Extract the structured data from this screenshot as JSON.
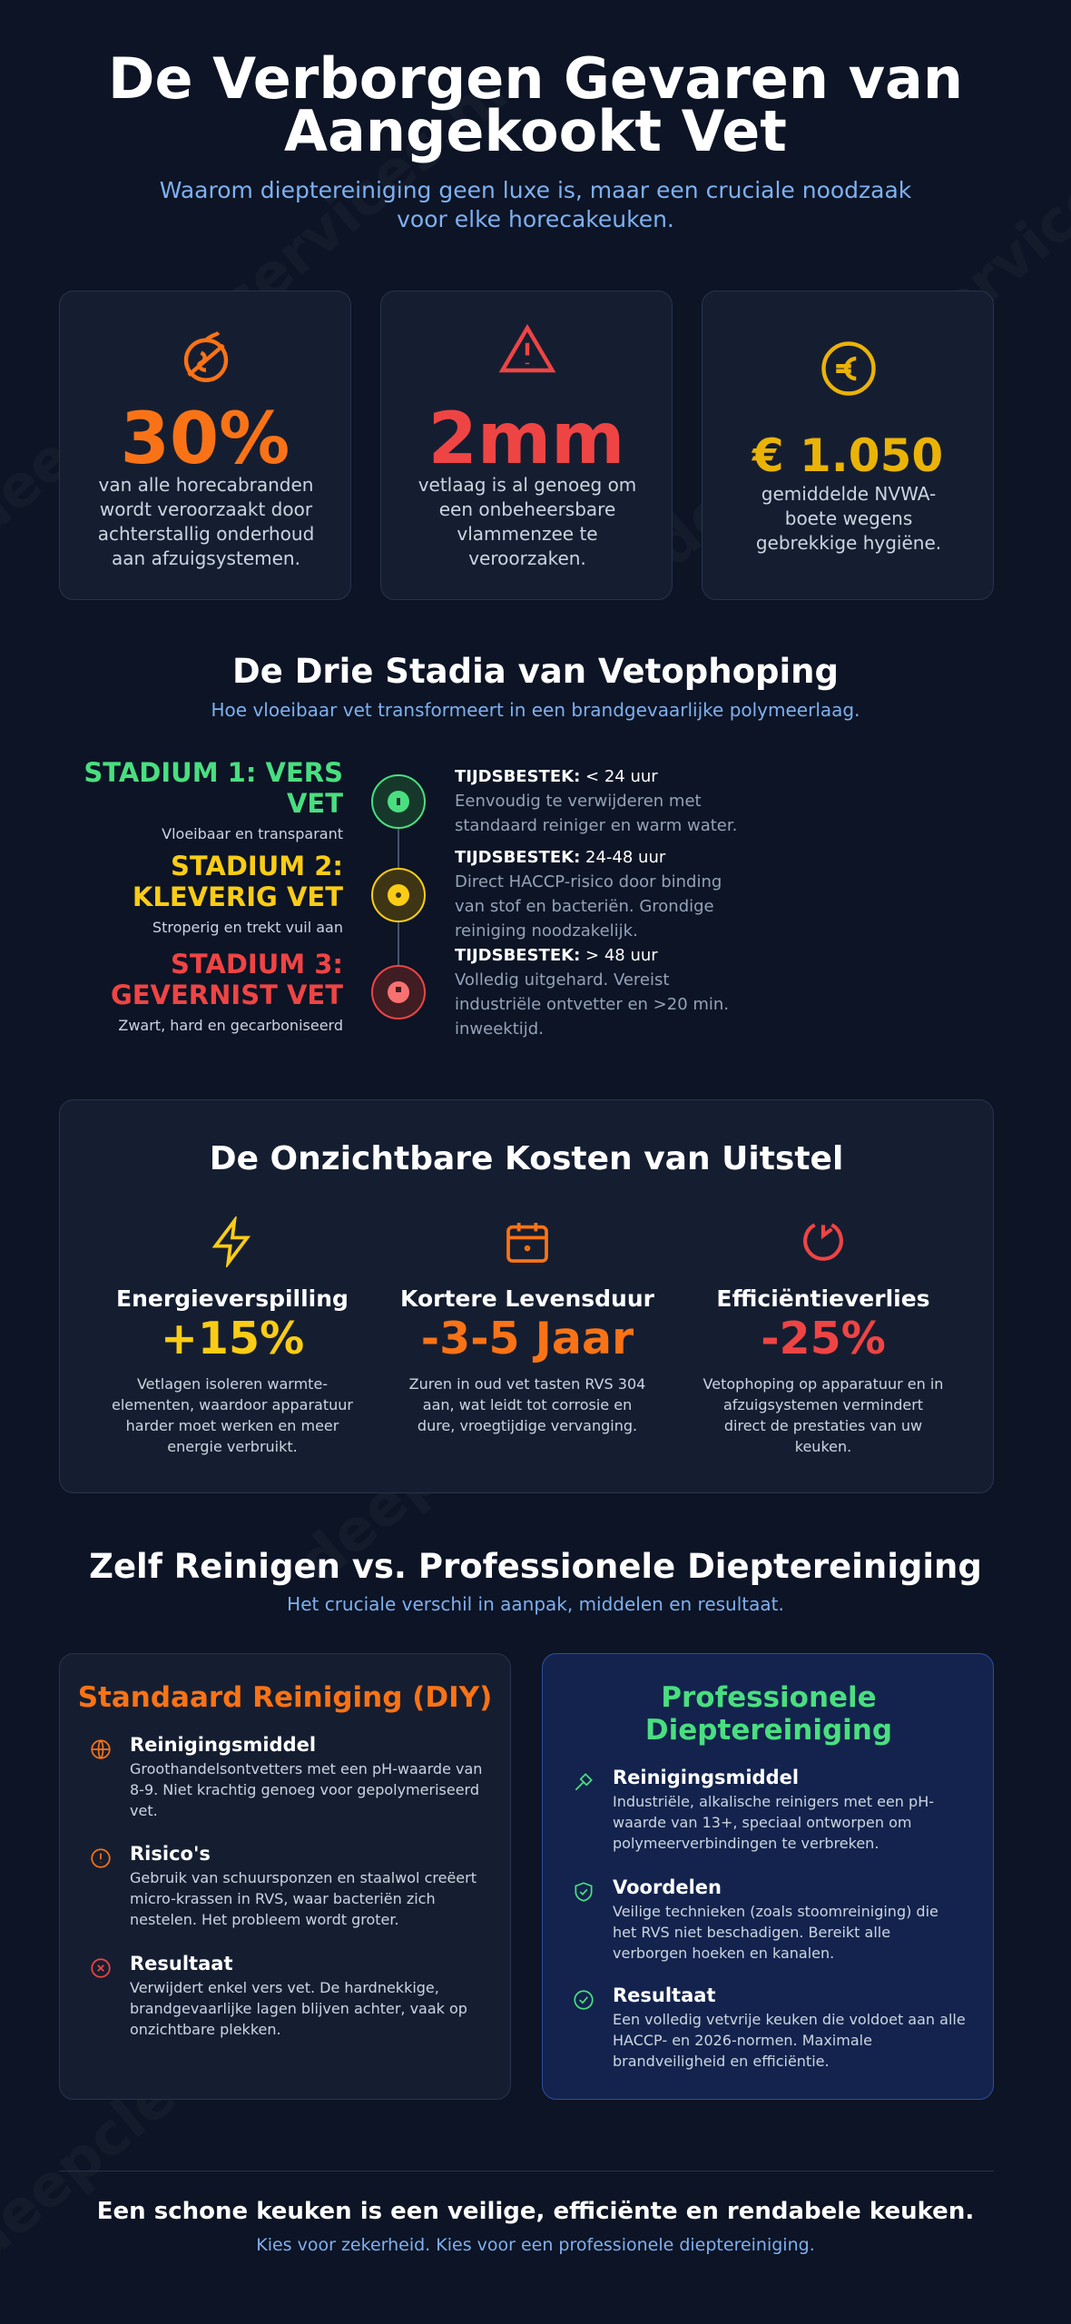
{
  "watermark": "deepcleanservices.nl",
  "header": {
    "title": "De Verborgen Gevaren van Aangekookt Vet",
    "subtitle": "Waarom dieptereiniging geen luxe is, maar een cruciale noodzaak voor elke horecakeuken."
  },
  "stats": [
    {
      "value": "30%",
      "text": "van alle horecabranden wordt veroorzaakt door achterstallig onderhoud aan afzuigsystemen."
    },
    {
      "value": "2mm",
      "text": "vetlaag is al genoeg om een onbeheersbare vlammenzee te veroorzaken."
    },
    {
      "value": "€ 1.050",
      "text": "gemiddelde NVWA-boete wegens gebrekkige hygiëne."
    }
  ],
  "stages": {
    "title": "De Drie Stadia van Vetophoping",
    "subtitle": "Hoe vloeibaar vet transformeert in een brandgevaarlijke polymeerlaag.",
    "items": [
      {
        "name": "STADIUM 1: VERS VET",
        "desc": "Vloeibaar en transparant",
        "time_label": "TIJDSBESTEK:",
        "time": "< 24 uur",
        "text": "Eenvoudig te verwijderen met standaard reiniger en warm water."
      },
      {
        "name": "STADIUM 2: KLEVERIG VET",
        "desc": "Stroperig en trekt vuil aan",
        "time_label": "TIJDSBESTEK:",
        "time": "24-48 uur",
        "text": "Direct HACCP-risico door binding van stof en bacteriën. Grondige reiniging noodzakelijk."
      },
      {
        "name": "STADIUM 3: GEVERNIST VET",
        "desc": "Zwart, hard en gecarboniseerd",
        "time_label": "TIJDSBESTEK:",
        "time": "> 48 uur",
        "text": "Volledig uitgehard. Vereist industriële ontvetter en >20 min. inweektijd."
      }
    ]
  },
  "costs": {
    "title": "De Onzichtbare Kosten van Uitstel",
    "items": [
      {
        "name": "Energieverspilling",
        "value": "+15%",
        "text": "Vetlagen isoleren warmte-elementen, waardoor apparatuur harder moet werken en meer energie verbruikt."
      },
      {
        "name": "Kortere Levensduur",
        "value": "-3-5 Jaar",
        "text": "Zuren in oud vet tasten RVS 304 aan, wat leidt tot corrosie en dure, vroegtijdige vervanging."
      },
      {
        "name": "Efficiëntieverlies",
        "value": "-25%",
        "text": "Vetophoping op apparatuur en in afzuigsystemen vermindert direct de prestaties van uw keuken."
      }
    ]
  },
  "comparison": {
    "title": "Zelf Reinigen vs. Professionele Dieptereiniging",
    "subtitle": "Het cruciale verschil in aanpak, middelen en resultaat.",
    "diy": {
      "title": "Standaard Reiniging (DIY)",
      "items": [
        {
          "name": "Reinigingsmiddel",
          "text": "Groothandelsontvetters met een pH-waarde van 8-9. Niet krachtig genoeg voor gepolymeriseerd vet."
        },
        {
          "name": "Risico's",
          "text": "Gebruik van schuursponzen en staalwol creëert micro-krassen in RVS, waar bacteriën zich nestelen. Het probleem wordt groter."
        },
        {
          "name": "Resultaat",
          "text": "Verwijdert enkel vers vet. De hardnekkige, brandgevaarlijke lagen blijven achter, vaak op onzichtbare plekken."
        }
      ]
    },
    "pro": {
      "title": "Professionele Dieptereiniging",
      "items": [
        {
          "name": "Reinigingsmiddel",
          "text": "Industriële, alkalische reinigers met een pH-waarde van 13+, speciaal ontworpen om polymeerverbindingen te verbreken."
        },
        {
          "name": "Voordelen",
          "text": "Veilige technieken (zoals stoomreiniging) die het RVS niet beschadigen. Bereikt alle verborgen hoeken en kanalen."
        },
        {
          "name": "Resultaat",
          "text": "Een volledig vetvrije keuken die voldoet aan alle HACCP- en 2026-normen. Maximale brandveiligheid en efficiëntie."
        }
      ]
    }
  },
  "footer": {
    "title": "Een schone keuken is een veilige, efficiënte en rendabele keuken.",
    "subtitle": "Kies voor zekerheid. Kies voor een professionele dieptereiniging."
  }
}
